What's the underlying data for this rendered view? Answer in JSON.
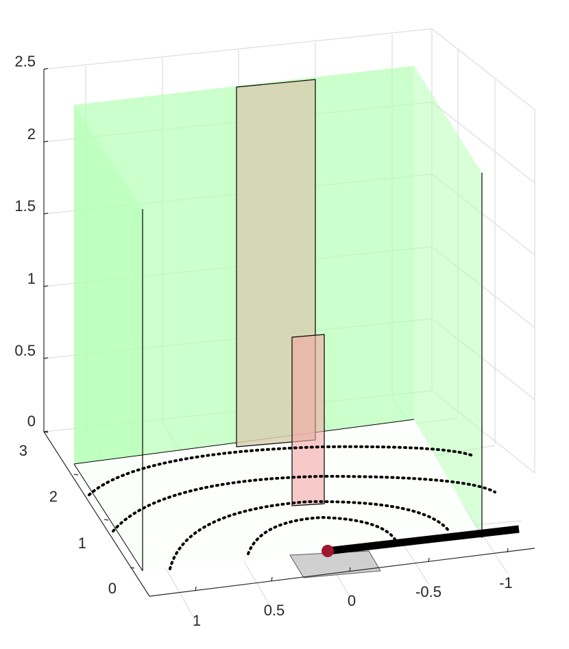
{
  "chart_data": {
    "type": "3d-scene",
    "title": "",
    "xlabel": "",
    "ylabel": "",
    "zlabel": "",
    "grid": true,
    "axes": {
      "x": {
        "range": [
          -1.25,
          1.25
        ],
        "ticks": [
          "-1",
          "-0.5",
          "0",
          "0.5",
          "1"
        ]
      },
      "y": {
        "range": [
          0,
          3
        ],
        "ticks": [
          "0",
          "1",
          "2",
          "3"
        ]
      },
      "z": {
        "range": [
          0,
          2.5
        ],
        "ticks": [
          "0",
          "0.5",
          "1",
          "1.5",
          "2",
          "2.5"
        ]
      }
    },
    "walls": [
      {
        "name": "left-wall",
        "color": "#b3ffb3"
      },
      {
        "name": "back-wall",
        "color": "#b3ffb3"
      },
      {
        "name": "ceiling",
        "color": "#b3ffb3"
      }
    ],
    "panels": [
      {
        "name": "tall-panel",
        "color": "#d8d0b0"
      },
      {
        "name": "short-panel",
        "color": "#f4a6a6"
      }
    ],
    "floor_patch": {
      "color": "#d0d0d0"
    },
    "arcs": {
      "count": 4,
      "style": "dotted",
      "color": "#000000"
    },
    "rod": {
      "color": "#000000"
    },
    "marker": {
      "color": "#a01830"
    }
  }
}
